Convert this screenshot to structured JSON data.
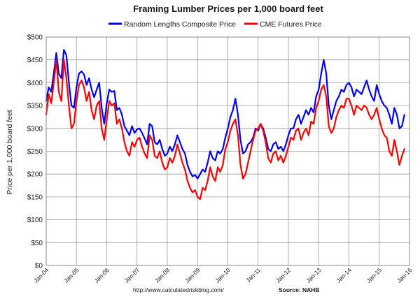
{
  "chart_data": {
    "type": "line",
    "title": "Framing Lumber Prices per 1,000 board feet",
    "ylabel": "Price per 1,000 board feet",
    "xlabel": "",
    "ylim": [
      0,
      500
    ],
    "xlim": [
      "2004-01",
      "2016-01"
    ],
    "y_ticks": [
      0,
      50,
      100,
      150,
      200,
      250,
      300,
      350,
      400,
      450,
      500
    ],
    "y_tick_labels": [
      "$0",
      "$50",
      "$100",
      "$150",
      "$200",
      "$250",
      "$300",
      "$350",
      "$400",
      "$450",
      "$500"
    ],
    "x_ticks": [
      "2004-01",
      "2005-01",
      "2006-01",
      "2007-01",
      "2008-01",
      "2009-01",
      "2010-01",
      "2011-01",
      "2012-01",
      "2013-01",
      "2014-01",
      "2015-01",
      "2016-01"
    ],
    "x_tick_labels": [
      "Jan-04",
      "Jan-05",
      "Jan-06",
      "Jan-07",
      "Jan-08",
      "Jan-09",
      "Jan-10",
      "Jan-11",
      "Jan-12",
      "Jan-13",
      "Jan-14",
      "Jan-15",
      "Jan-16"
    ],
    "grid": true,
    "legend_position": "top",
    "series": [
      {
        "name": "Random Lengths Composite Price",
        "color": "#0000ff",
        "points": [
          [
            "2004-01",
            360
          ],
          [
            "2004-02",
            390
          ],
          [
            "2004-03",
            380
          ],
          [
            "2004-04",
            420
          ],
          [
            "2004-05",
            465
          ],
          [
            "2004-06",
            420
          ],
          [
            "2004-07",
            410
          ],
          [
            "2004-08",
            472
          ],
          [
            "2004-09",
            460
          ],
          [
            "2004-10",
            400
          ],
          [
            "2004-11",
            350
          ],
          [
            "2004-12",
            345
          ],
          [
            "2005-01",
            390
          ],
          [
            "2005-02",
            420
          ],
          [
            "2005-03",
            425
          ],
          [
            "2005-04",
            418
          ],
          [
            "2005-05",
            395
          ],
          [
            "2005-06",
            410
          ],
          [
            "2005-07",
            385
          ],
          [
            "2005-08",
            368
          ],
          [
            "2005-09",
            385
          ],
          [
            "2005-10",
            400
          ],
          [
            "2005-11",
            345
          ],
          [
            "2005-12",
            310
          ],
          [
            "2006-01",
            355
          ],
          [
            "2006-02",
            385
          ],
          [
            "2006-03",
            380
          ],
          [
            "2006-04",
            382
          ],
          [
            "2006-05",
            340
          ],
          [
            "2006-06",
            345
          ],
          [
            "2006-07",
            330
          ],
          [
            "2006-08",
            305
          ],
          [
            "2006-09",
            295
          ],
          [
            "2006-10",
            285
          ],
          [
            "2006-11",
            305
          ],
          [
            "2006-12",
            290
          ],
          [
            "2007-01",
            298
          ],
          [
            "2007-02",
            300
          ],
          [
            "2007-03",
            290
          ],
          [
            "2007-04",
            278
          ],
          [
            "2007-05",
            265
          ],
          [
            "2007-06",
            310
          ],
          [
            "2007-07",
            305
          ],
          [
            "2007-08",
            270
          ],
          [
            "2007-09",
            265
          ],
          [
            "2007-10",
            275
          ],
          [
            "2007-11",
            255
          ],
          [
            "2007-12",
            240
          ],
          [
            "2008-01",
            245
          ],
          [
            "2008-02",
            260
          ],
          [
            "2008-03",
            250
          ],
          [
            "2008-04",
            265
          ],
          [
            "2008-05",
            285
          ],
          [
            "2008-06",
            270
          ],
          [
            "2008-07",
            255
          ],
          [
            "2008-08",
            245
          ],
          [
            "2008-09",
            220
          ],
          [
            "2008-10",
            205
          ],
          [
            "2008-11",
            195
          ],
          [
            "2008-12",
            198
          ],
          [
            "2009-01",
            190
          ],
          [
            "2009-02",
            200
          ],
          [
            "2009-03",
            210
          ],
          [
            "2009-04",
            205
          ],
          [
            "2009-05",
            225
          ],
          [
            "2009-06",
            250
          ],
          [
            "2009-07",
            235
          ],
          [
            "2009-08",
            230
          ],
          [
            "2009-09",
            250
          ],
          [
            "2009-10",
            245
          ],
          [
            "2009-11",
            255
          ],
          [
            "2009-12",
            280
          ],
          [
            "2010-01",
            300
          ],
          [
            "2010-02",
            325
          ],
          [
            "2010-03",
            340
          ],
          [
            "2010-04",
            365
          ],
          [
            "2010-05",
            330
          ],
          [
            "2010-06",
            275
          ],
          [
            "2010-07",
            245
          ],
          [
            "2010-08",
            250
          ],
          [
            "2010-09",
            265
          ],
          [
            "2010-10",
            270
          ],
          [
            "2010-11",
            280
          ],
          [
            "2010-12",
            300
          ],
          [
            "2011-01",
            295
          ],
          [
            "2011-02",
            310
          ],
          [
            "2011-03",
            300
          ],
          [
            "2011-04",
            280
          ],
          [
            "2011-05",
            255
          ],
          [
            "2011-06",
            250
          ],
          [
            "2011-07",
            265
          ],
          [
            "2011-08",
            270
          ],
          [
            "2011-09",
            255
          ],
          [
            "2011-10",
            260
          ],
          [
            "2011-11",
            250
          ],
          [
            "2011-12",
            265
          ],
          [
            "2012-01",
            285
          ],
          [
            "2012-02",
            300
          ],
          [
            "2012-03",
            300
          ],
          [
            "2012-04",
            320
          ],
          [
            "2012-05",
            330
          ],
          [
            "2012-06",
            310
          ],
          [
            "2012-07",
            325
          ],
          [
            "2012-08",
            340
          ],
          [
            "2012-09",
            330
          ],
          [
            "2012-10",
            345
          ],
          [
            "2012-11",
            335
          ],
          [
            "2012-12",
            370
          ],
          [
            "2013-01",
            385
          ],
          [
            "2013-02",
            420
          ],
          [
            "2013-03",
            450
          ],
          [
            "2013-04",
            420
          ],
          [
            "2013-05",
            350
          ],
          [
            "2013-06",
            320
          ],
          [
            "2013-07",
            340
          ],
          [
            "2013-08",
            360
          ],
          [
            "2013-09",
            370
          ],
          [
            "2013-10",
            385
          ],
          [
            "2013-11",
            380
          ],
          [
            "2013-12",
            395
          ],
          [
            "2014-01",
            400
          ],
          [
            "2014-02",
            390
          ],
          [
            "2014-03",
            370
          ],
          [
            "2014-04",
            385
          ],
          [
            "2014-05",
            380
          ],
          [
            "2014-06",
            375
          ],
          [
            "2014-07",
            390
          ],
          [
            "2014-08",
            405
          ],
          [
            "2014-09",
            385
          ],
          [
            "2014-10",
            370
          ],
          [
            "2014-11",
            360
          ],
          [
            "2014-12",
            395
          ],
          [
            "2015-01",
            375
          ],
          [
            "2015-02",
            360
          ],
          [
            "2015-03",
            350
          ],
          [
            "2015-04",
            345
          ],
          [
            "2015-05",
            330
          ],
          [
            "2015-06",
            310
          ],
          [
            "2015-07",
            345
          ],
          [
            "2015-08",
            330
          ],
          [
            "2015-09",
            300
          ],
          [
            "2015-10",
            305
          ],
          [
            "2015-11",
            330
          ]
        ]
      },
      {
        "name": "CME Futures Price",
        "color": "#ff0000",
        "points": [
          [
            "2004-01",
            330
          ],
          [
            "2004-02",
            375
          ],
          [
            "2004-03",
            355
          ],
          [
            "2004-04",
            400
          ],
          [
            "2004-05",
            450
          ],
          [
            "2004-06",
            380
          ],
          [
            "2004-07",
            360
          ],
          [
            "2004-08",
            450
          ],
          [
            "2004-09",
            410
          ],
          [
            "2004-10",
            350
          ],
          [
            "2004-11",
            300
          ],
          [
            "2004-12",
            310
          ],
          [
            "2005-01",
            360
          ],
          [
            "2005-02",
            395
          ],
          [
            "2005-03",
            405
          ],
          [
            "2005-04",
            390
          ],
          [
            "2005-05",
            360
          ],
          [
            "2005-06",
            380
          ],
          [
            "2005-07",
            340
          ],
          [
            "2005-08",
            320
          ],
          [
            "2005-09",
            350
          ],
          [
            "2005-10",
            360
          ],
          [
            "2005-11",
            300
          ],
          [
            "2005-12",
            275
          ],
          [
            "2006-01",
            320
          ],
          [
            "2006-02",
            360
          ],
          [
            "2006-03",
            350
          ],
          [
            "2006-04",
            355
          ],
          [
            "2006-05",
            310
          ],
          [
            "2006-06",
            320
          ],
          [
            "2006-07",
            300
          ],
          [
            "2006-08",
            270
          ],
          [
            "2006-09",
            250
          ],
          [
            "2006-10",
            240
          ],
          [
            "2006-11",
            270
          ],
          [
            "2006-12",
            260
          ],
          [
            "2007-01",
            275
          ],
          [
            "2007-02",
            280
          ],
          [
            "2007-03",
            260
          ],
          [
            "2007-04",
            245
          ],
          [
            "2007-05",
            235
          ],
          [
            "2007-06",
            285
          ],
          [
            "2007-07",
            275
          ],
          [
            "2007-08",
            240
          ],
          [
            "2007-09",
            235
          ],
          [
            "2007-10",
            250
          ],
          [
            "2007-11",
            225
          ],
          [
            "2007-12",
            210
          ],
          [
            "2008-01",
            215
          ],
          [
            "2008-02",
            235
          ],
          [
            "2008-03",
            225
          ],
          [
            "2008-04",
            240
          ],
          [
            "2008-05",
            265
          ],
          [
            "2008-06",
            245
          ],
          [
            "2008-07",
            225
          ],
          [
            "2008-08",
            210
          ],
          [
            "2008-09",
            185
          ],
          [
            "2008-10",
            170
          ],
          [
            "2008-11",
            160
          ],
          [
            "2008-12",
            165
          ],
          [
            "2009-01",
            150
          ],
          [
            "2009-02",
            145
          ],
          [
            "2009-03",
            170
          ],
          [
            "2009-04",
            165
          ],
          [
            "2009-05",
            185
          ],
          [
            "2009-06",
            215
          ],
          [
            "2009-07",
            195
          ],
          [
            "2009-08",
            185
          ],
          [
            "2009-09",
            215
          ],
          [
            "2009-10",
            205
          ],
          [
            "2009-11",
            220
          ],
          [
            "2009-12",
            255
          ],
          [
            "2010-01",
            270
          ],
          [
            "2010-02",
            295
          ],
          [
            "2010-03",
            310
          ],
          [
            "2010-04",
            320
          ],
          [
            "2010-05",
            285
          ],
          [
            "2010-06",
            220
          ],
          [
            "2010-07",
            190
          ],
          [
            "2010-08",
            200
          ],
          [
            "2010-09",
            225
          ],
          [
            "2010-10",
            250
          ],
          [
            "2010-11",
            275
          ],
          [
            "2010-12",
            295
          ],
          [
            "2011-01",
            300
          ],
          [
            "2011-02",
            310
          ],
          [
            "2011-03",
            295
          ],
          [
            "2011-04",
            270
          ],
          [
            "2011-05",
            235
          ],
          [
            "2011-06",
            225
          ],
          [
            "2011-07",
            245
          ],
          [
            "2011-08",
            250
          ],
          [
            "2011-09",
            230
          ],
          [
            "2011-10",
            240
          ],
          [
            "2011-11",
            225
          ],
          [
            "2011-12",
            240
          ],
          [
            "2012-01",
            260
          ],
          [
            "2012-02",
            280
          ],
          [
            "2012-03",
            275
          ],
          [
            "2012-04",
            295
          ],
          [
            "2012-05",
            300
          ],
          [
            "2012-06",
            275
          ],
          [
            "2012-07",
            290
          ],
          [
            "2012-08",
            300
          ],
          [
            "2012-09",
            285
          ],
          [
            "2012-10",
            315
          ],
          [
            "2012-11",
            310
          ],
          [
            "2012-12",
            345
          ],
          [
            "2013-01",
            360
          ],
          [
            "2013-02",
            385
          ],
          [
            "2013-03",
            395
          ],
          [
            "2013-04",
            370
          ],
          [
            "2013-05",
            305
          ],
          [
            "2013-06",
            290
          ],
          [
            "2013-07",
            300
          ],
          [
            "2013-08",
            325
          ],
          [
            "2013-09",
            340
          ],
          [
            "2013-10",
            350
          ],
          [
            "2013-11",
            345
          ],
          [
            "2013-12",
            365
          ],
          [
            "2014-01",
            365
          ],
          [
            "2014-02",
            350
          ],
          [
            "2014-03",
            330
          ],
          [
            "2014-04",
            350
          ],
          [
            "2014-05",
            345
          ],
          [
            "2014-06",
            340
          ],
          [
            "2014-07",
            350
          ],
          [
            "2014-08",
            345
          ],
          [
            "2014-09",
            330
          ],
          [
            "2014-10",
            320
          ],
          [
            "2014-11",
            330
          ],
          [
            "2014-12",
            345
          ],
          [
            "2015-01",
            320
          ],
          [
            "2015-02",
            300
          ],
          [
            "2015-03",
            285
          ],
          [
            "2015-04",
            280
          ],
          [
            "2015-05",
            250
          ],
          [
            "2015-06",
            240
          ],
          [
            "2015-07",
            275
          ],
          [
            "2015-08",
            250
          ],
          [
            "2015-09",
            220
          ],
          [
            "2015-10",
            240
          ],
          [
            "2015-11",
            255
          ]
        ]
      }
    ]
  },
  "footer": {
    "url": "http://www.calculatedriskblog.com/",
    "source": "Source: NAHB"
  }
}
